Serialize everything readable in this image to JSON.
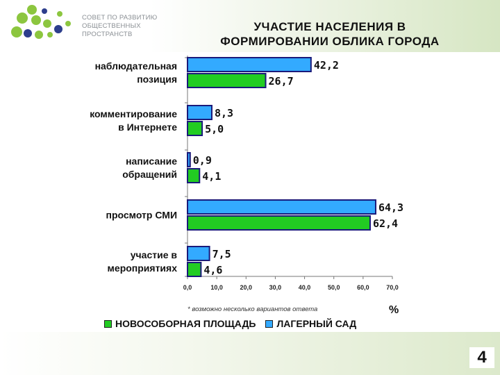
{
  "header": {
    "org_lines": [
      "СОВЕТ ПО РАЗВИТИЮ",
      "ОБЩЕСТВЕННЫХ",
      "ПРОСТРАНСТВ"
    ],
    "title_lines": [
      "УЧАСТИЕ НАСЕЛЕНИЯ В",
      "ФОРМИРОВАНИИ ОБЛИКА ГОРОДА"
    ]
  },
  "chart_data": {
    "type": "bar",
    "orientation": "horizontal",
    "categories": [
      [
        "наблюдательная",
        "позиция"
      ],
      [
        "комментирование",
        "в Интернете"
      ],
      [
        "написание",
        "обращений"
      ],
      [
        "просмотр СМИ"
      ],
      [
        "участие в",
        "мероприятиях"
      ]
    ],
    "series": [
      {
        "name": "ЛАГЕРНЫЙ САД",
        "color": "#33aaff",
        "values": [
          42.2,
          8.3,
          0.9,
          64.3,
          7.5
        ]
      },
      {
        "name": "НОВОСОБОРНАЯ ПЛОЩАДЬ",
        "color": "#22cc22",
        "values": [
          26.7,
          5.0,
          4.1,
          62.4,
          4.6
        ]
      }
    ],
    "value_labels": [
      [
        "42,2",
        "8,3",
        "0,9",
        "64,3",
        "7,5"
      ],
      [
        "26,7",
        "5,0",
        "4,1",
        "62,4",
        "4,6"
      ]
    ],
    "xlim": [
      0,
      70
    ],
    "xticks": [
      "0,0",
      "10,0",
      "20,0",
      "30,0",
      "40,0",
      "50,0",
      "60,0",
      "70,0"
    ],
    "xlabel": "%",
    "legend_position": "bottom",
    "grid": false
  },
  "footnote": "* возможно несколько вариантов ответа",
  "legend": [
    {
      "label": "НОВОСОБОРНАЯ ПЛОЩАДЬ",
      "color": "#22cc22"
    },
    {
      "label": "ЛАГЕРНЫЙ САД",
      "color": "#33aaff"
    }
  ],
  "page_number": "4"
}
